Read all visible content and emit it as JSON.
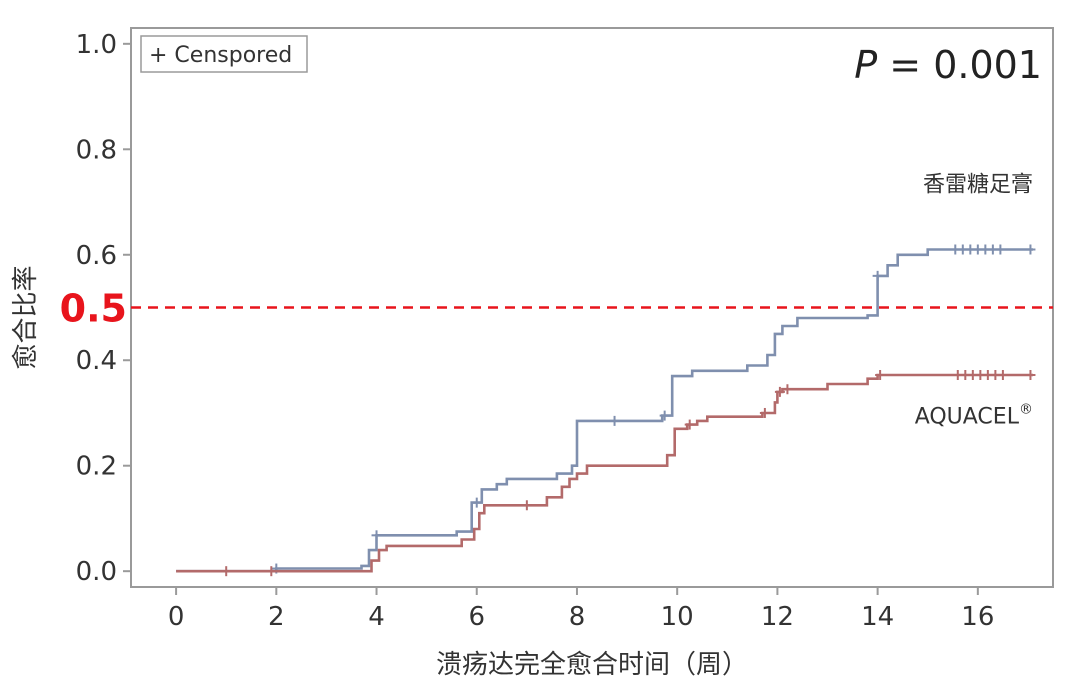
{
  "chart_data": {
    "type": "line",
    "step": true,
    "xlabel": "溃疡达完全愈合时间（周）",
    "ylabel": "愈合比率",
    "xlim": [
      -0.9,
      17.5
    ],
    "ylim": [
      -0.03,
      1.03
    ],
    "xticks": [
      0,
      2,
      4,
      6,
      8,
      10,
      12,
      14,
      16
    ],
    "yticks": [
      0.0,
      0.2,
      0.4,
      0.6,
      0.8,
      1.0
    ],
    "ytick_labels": [
      "0.0",
      "0.2",
      "0.4",
      "0.6",
      "0.8",
      "1.0"
    ],
    "grid": false,
    "legend": {
      "position": "top-left",
      "text": "+ Censpored"
    },
    "annotation": {
      "p_label": "P",
      "p_rest": " = 0.001",
      "position": "top-right"
    },
    "reference_line": {
      "y": 0.5,
      "label": "0.5",
      "color": "#e8141c",
      "style": "dashed"
    },
    "series": [
      {
        "name": "香雷糖足膏",
        "color": "#7f8fae",
        "points": [
          [
            0,
            0
          ],
          [
            2,
            0
          ],
          [
            2,
            0.005
          ],
          [
            3.7,
            0.005
          ],
          [
            3.7,
            0.01
          ],
          [
            3.85,
            0.01
          ],
          [
            3.85,
            0.04
          ],
          [
            4,
            0.04
          ],
          [
            4,
            0.068
          ],
          [
            5.6,
            0.068
          ],
          [
            5.6,
            0.075
          ],
          [
            5.9,
            0.075
          ],
          [
            5.9,
            0.13
          ],
          [
            6.1,
            0.13
          ],
          [
            6.1,
            0.155
          ],
          [
            6.4,
            0.155
          ],
          [
            6.4,
            0.165
          ],
          [
            6.6,
            0.165
          ],
          [
            6.6,
            0.175
          ],
          [
            7.6,
            0.175
          ],
          [
            7.6,
            0.185
          ],
          [
            7.9,
            0.185
          ],
          [
            7.9,
            0.2
          ],
          [
            8,
            0.2
          ],
          [
            8,
            0.285
          ],
          [
            9.7,
            0.285
          ],
          [
            9.7,
            0.295
          ],
          [
            9.9,
            0.295
          ],
          [
            9.9,
            0.37
          ],
          [
            10.3,
            0.37
          ],
          [
            10.3,
            0.38
          ],
          [
            11.4,
            0.38
          ],
          [
            11.4,
            0.39
          ],
          [
            11.8,
            0.39
          ],
          [
            11.8,
            0.41
          ],
          [
            11.95,
            0.41
          ],
          [
            11.95,
            0.45
          ],
          [
            12.1,
            0.45
          ],
          [
            12.1,
            0.465
          ],
          [
            12.4,
            0.465
          ],
          [
            12.4,
            0.48
          ],
          [
            13.8,
            0.48
          ],
          [
            13.8,
            0.485
          ],
          [
            14,
            0.485
          ],
          [
            14,
            0.56
          ],
          [
            14.2,
            0.56
          ],
          [
            14.2,
            0.58
          ],
          [
            14.4,
            0.58
          ],
          [
            14.4,
            0.6
          ],
          [
            15,
            0.6
          ],
          [
            15,
            0.61
          ],
          [
            17.1,
            0.61
          ]
        ],
        "censored": [
          [
            2.0,
            0.005
          ],
          [
            4.0,
            0.068
          ],
          [
            6.0,
            0.13
          ],
          [
            8.75,
            0.285
          ],
          [
            9.75,
            0.295
          ],
          [
            14.0,
            0.56
          ],
          [
            15.55,
            0.61
          ],
          [
            15.7,
            0.61
          ],
          [
            15.85,
            0.61
          ],
          [
            16.0,
            0.61
          ],
          [
            16.15,
            0.61
          ],
          [
            16.3,
            0.61
          ],
          [
            16.45,
            0.61
          ],
          [
            17.05,
            0.61
          ]
        ],
        "label_x": 17.1,
        "label_y": 0.72
      },
      {
        "name": "AQUACEL",
        "name_suffix": "®",
        "color": "#b36a6a",
        "points": [
          [
            0,
            0
          ],
          [
            3.9,
            0
          ],
          [
            3.9,
            0.02
          ],
          [
            4.05,
            0.02
          ],
          [
            4.05,
            0.04
          ],
          [
            4.2,
            0.04
          ],
          [
            4.2,
            0.048
          ],
          [
            5.7,
            0.048
          ],
          [
            5.7,
            0.06
          ],
          [
            5.95,
            0.06
          ],
          [
            5.95,
            0.08
          ],
          [
            6.05,
            0.08
          ],
          [
            6.05,
            0.11
          ],
          [
            6.15,
            0.11
          ],
          [
            6.15,
            0.125
          ],
          [
            7.4,
            0.125
          ],
          [
            7.4,
            0.14
          ],
          [
            7.7,
            0.14
          ],
          [
            7.7,
            0.16
          ],
          [
            7.85,
            0.16
          ],
          [
            7.85,
            0.175
          ],
          [
            8,
            0.175
          ],
          [
            8,
            0.185
          ],
          [
            8.2,
            0.185
          ],
          [
            8.2,
            0.2
          ],
          [
            9.8,
            0.2
          ],
          [
            9.8,
            0.22
          ],
          [
            9.95,
            0.22
          ],
          [
            9.95,
            0.27
          ],
          [
            10.2,
            0.27
          ],
          [
            10.2,
            0.278
          ],
          [
            10.4,
            0.278
          ],
          [
            10.4,
            0.285
          ],
          [
            10.6,
            0.285
          ],
          [
            10.6,
            0.293
          ],
          [
            11.7,
            0.293
          ],
          [
            11.7,
            0.3
          ],
          [
            11.95,
            0.3
          ],
          [
            11.95,
            0.32
          ],
          [
            12,
            0.32
          ],
          [
            12,
            0.34
          ],
          [
            12.1,
            0.34
          ],
          [
            12.1,
            0.345
          ],
          [
            13,
            0.345
          ],
          [
            13,
            0.355
          ],
          [
            13.8,
            0.355
          ],
          [
            13.8,
            0.365
          ],
          [
            14.0,
            0.365
          ],
          [
            14.0,
            0.372
          ],
          [
            17.1,
            0.372
          ]
        ],
        "censored": [
          [
            1.0,
            0.0
          ],
          [
            1.9,
            0.0
          ],
          [
            7.0,
            0.125
          ],
          [
            10.25,
            0.278
          ],
          [
            11.75,
            0.3
          ],
          [
            12.05,
            0.34
          ],
          [
            12.2,
            0.345
          ],
          [
            14.05,
            0.372
          ],
          [
            15.6,
            0.372
          ],
          [
            15.75,
            0.372
          ],
          [
            15.9,
            0.372
          ],
          [
            16.05,
            0.372
          ],
          [
            16.2,
            0.372
          ],
          [
            16.35,
            0.372
          ],
          [
            16.5,
            0.372
          ],
          [
            17.05,
            0.372
          ]
        ],
        "label_x": 17.1,
        "label_y": 0.28
      }
    ]
  }
}
